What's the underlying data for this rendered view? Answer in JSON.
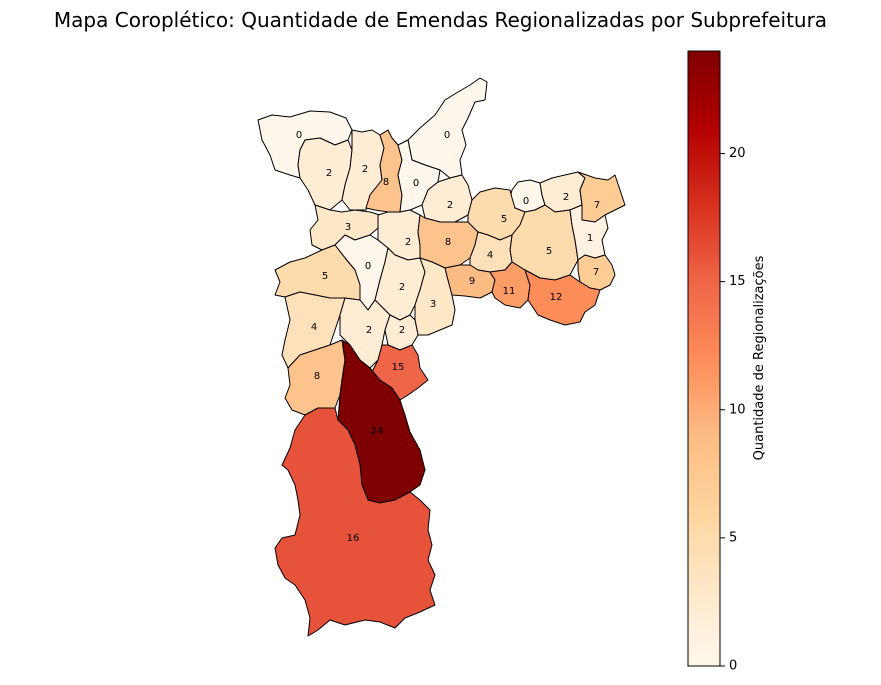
{
  "title": "Mapa Coroplético: Quantidade de Emendas Regionalizadas por Subprefeitura",
  "chart_data": {
    "type": "choropleth",
    "colormap": "OrRd",
    "colorbar": {
      "label": "Quantidade de Regionalizações",
      "range": [
        0,
        24
      ],
      "ticks": [
        0,
        5,
        10,
        15,
        20
      ]
    },
    "region_values": [
      0,
      0,
      2,
      2,
      8,
      0,
      2,
      0,
      2,
      7,
      3,
      2,
      8,
      5,
      5,
      1,
      0,
      5,
      4,
      7,
      2,
      3,
      9,
      11,
      12,
      4,
      2,
      2,
      8,
      15,
      24,
      16
    ]
  }
}
